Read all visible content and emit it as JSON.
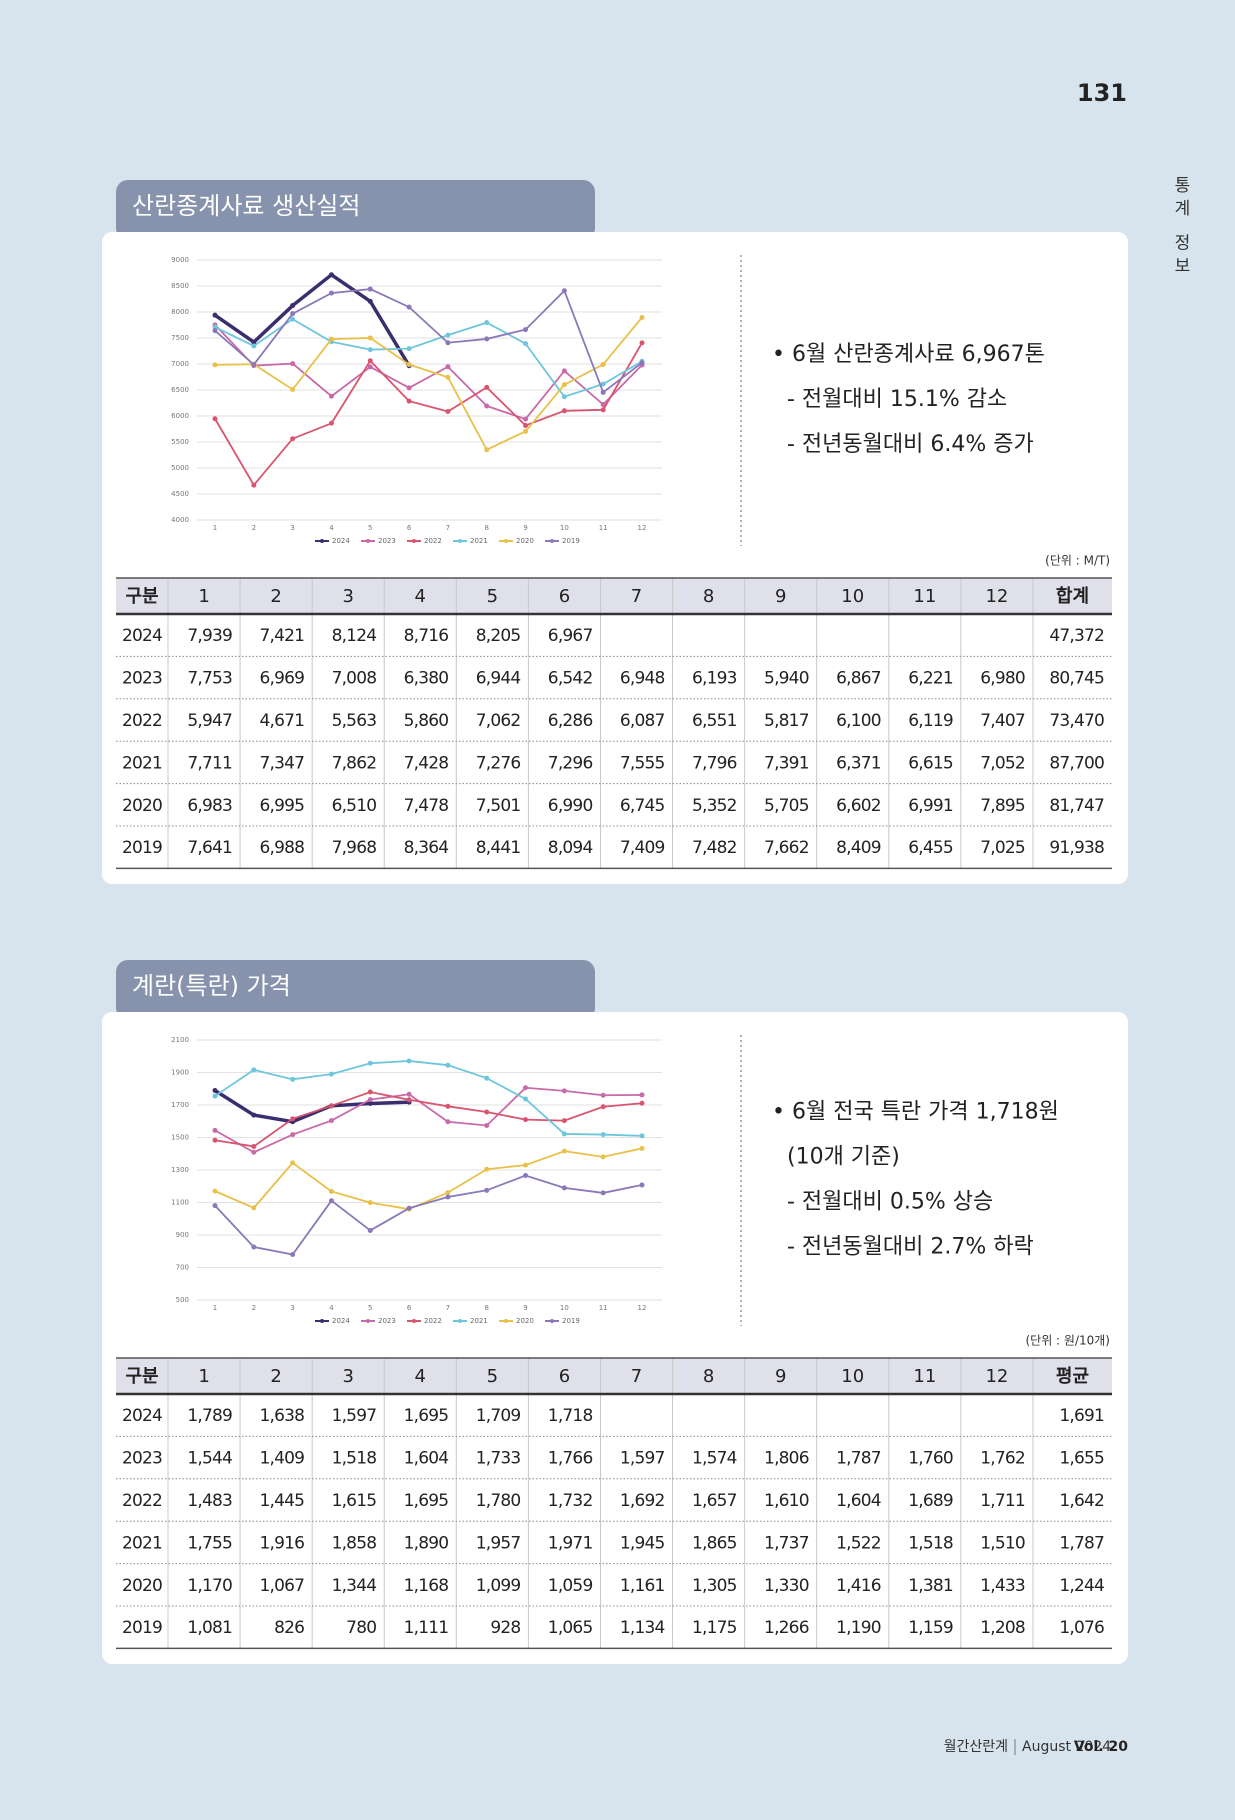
{
  "page_number": "131",
  "side_label": "통계 정보",
  "footer": {
    "magazine": "월간산란계",
    "issue": "August 2024",
    "vol": "Vol. 20"
  },
  "sections": [
    {
      "title": "산란종계사료 생산실적",
      "chart": {
        "type": "line",
        "categories": [
          "1",
          "2",
          "3",
          "4",
          "5",
          "6",
          "7",
          "8",
          "9",
          "10",
          "11",
          "12"
        ],
        "ylim": [
          4000,
          9000
        ],
        "yticks": [
          4000,
          4500,
          5000,
          5500,
          6000,
          6500,
          7000,
          7500,
          8000,
          8500,
          9000
        ],
        "grid": true,
        "series": [
          {
            "name": "2024",
            "color": "#3b2d6e",
            "values": [
              7939,
              7421,
              8124,
              8716,
              8205,
              6967,
              null,
              null,
              null,
              null,
              null,
              null
            ]
          },
          {
            "name": "2023",
            "color": "#c86aa8",
            "values": [
              7753,
              6969,
              7008,
              6380,
              6944,
              6542,
              6948,
              6193,
              5940,
              6867,
              6221,
              6980
            ]
          },
          {
            "name": "2022",
            "color": "#d9546e",
            "values": [
              5947,
              4671,
              5563,
              5860,
              7062,
              6286,
              6087,
              6551,
              5817,
              6100,
              6119,
              7407
            ]
          },
          {
            "name": "2021",
            "color": "#6ec6dc",
            "values": [
              7711,
              7347,
              7862,
              7428,
              7276,
              7296,
              7555,
              7796,
              7391,
              6371,
              6615,
              7052
            ]
          },
          {
            "name": "2020",
            "color": "#e8c04a",
            "values": [
              6983,
              6995,
              6510,
              7478,
              7501,
              6990,
              6745,
              5352,
              5705,
              6602,
              6991,
              7895
            ]
          },
          {
            "name": "2019",
            "color": "#8a78b8",
            "values": [
              7641,
              6988,
              7968,
              8364,
              8441,
              8094,
              7409,
              7482,
              7662,
              8409,
              6455,
              7025
            ]
          }
        ]
      },
      "notes": [
        "• 6월 산란종계사료 6,967톤",
        "- 전월대비 15.1% 감소",
        "- 전년동월대비 6.4% 증가"
      ],
      "unit": "(단위 : M/T)",
      "table": {
        "header": [
          "구분",
          "1",
          "2",
          "3",
          "4",
          "5",
          "6",
          "7",
          "8",
          "9",
          "10",
          "11",
          "12",
          "합계"
        ],
        "rows": [
          [
            "2024",
            "7,939",
            "7,421",
            "8,124",
            "8,716",
            "8,205",
            "6,967",
            null,
            null,
            null,
            null,
            null,
            null,
            "47,372"
          ],
          [
            "2023",
            "7,753",
            "6,969",
            "7,008",
            "6,380",
            "6,944",
            "6,542",
            "6,948",
            "6,193",
            "5,940",
            "6,867",
            "6,221",
            "6,980",
            "80,745"
          ],
          [
            "2022",
            "5,947",
            "4,671",
            "5,563",
            "5,860",
            "7,062",
            "6,286",
            "6,087",
            "6,551",
            "5,817",
            "6,100",
            "6,119",
            "7,407",
            "73,470"
          ],
          [
            "2021",
            "7,711",
            "7,347",
            "7,862",
            "7,428",
            "7,276",
            "7,296",
            "7,555",
            "7,796",
            "7,391",
            "6,371",
            "6,615",
            "7,052",
            "87,700"
          ],
          [
            "2020",
            "6,983",
            "6,995",
            "6,510",
            "7,478",
            "7,501",
            "6,990",
            "6,745",
            "5,352",
            "5,705",
            "6,602",
            "6,991",
            "7,895",
            "81,747"
          ],
          [
            "2019",
            "7,641",
            "6,988",
            "7,968",
            "8,364",
            "8,441",
            "8,094",
            "7,409",
            "7,482",
            "7,662",
            "8,409",
            "6,455",
            "7,025",
            "91,938"
          ]
        ]
      }
    },
    {
      "title": "계란(특란) 가격",
      "chart": {
        "type": "line",
        "categories": [
          "1",
          "2",
          "3",
          "4",
          "5",
          "6",
          "7",
          "8",
          "9",
          "10",
          "11",
          "12"
        ],
        "ylim": [
          500,
          2100
        ],
        "yticks": [
          500,
          700,
          900,
          1100,
          1300,
          1500,
          1700,
          1900,
          2100
        ],
        "grid": true,
        "series": [
          {
            "name": "2024",
            "color": "#3b2d6e",
            "values": [
              1789,
              1638,
              1597,
              1695,
              1709,
              1718,
              null,
              null,
              null,
              null,
              null,
              null
            ]
          },
          {
            "name": "2023",
            "color": "#c86aa8",
            "values": [
              1544,
              1409,
              1518,
              1604,
              1733,
              1766,
              1597,
              1574,
              1806,
              1787,
              1760,
              1762
            ]
          },
          {
            "name": "2022",
            "color": "#d9546e",
            "values": [
              1483,
              1445,
              1615,
              1695,
              1780,
              1732,
              1692,
              1657,
              1610,
              1604,
              1689,
              1711
            ]
          },
          {
            "name": "2021",
            "color": "#6ec6dc",
            "values": [
              1755,
              1916,
              1858,
              1890,
              1957,
              1971,
              1945,
              1865,
              1737,
              1522,
              1518,
              1510
            ]
          },
          {
            "name": "2020",
            "color": "#e8c04a",
            "values": [
              1170,
              1067,
              1344,
              1168,
              1099,
              1059,
              1161,
              1305,
              1330,
              1416,
              1381,
              1433
            ]
          },
          {
            "name": "2019",
            "color": "#8a78b8",
            "values": [
              1081,
              826,
              780,
              1111,
              928,
              1065,
              1134,
              1175,
              1266,
              1190,
              1159,
              1208
            ]
          }
        ]
      },
      "notes": [
        "• 6월 전국 특란 가격 1,718원",
        "(10개 기준)",
        "- 전월대비 0.5% 상승",
        "- 전년동월대비 2.7% 하락"
      ],
      "unit": "(단위 : 원/10개)",
      "table": {
        "header": [
          "구분",
          "1",
          "2",
          "3",
          "4",
          "5",
          "6",
          "7",
          "8",
          "9",
          "10",
          "11",
          "12",
          "평균"
        ],
        "rows": [
          [
            "2024",
            "1,789",
            "1,638",
            "1,597",
            "1,695",
            "1,709",
            "1,718",
            null,
            null,
            null,
            null,
            null,
            null,
            "1,691"
          ],
          [
            "2023",
            "1,544",
            "1,409",
            "1,518",
            "1,604",
            "1,733",
            "1,766",
            "1,597",
            "1,574",
            "1,806",
            "1,787",
            "1,760",
            "1,762",
            "1,655"
          ],
          [
            "2022",
            "1,483",
            "1,445",
            "1,615",
            "1,695",
            "1,780",
            "1,732",
            "1,692",
            "1,657",
            "1,610",
            "1,604",
            "1,689",
            "1,711",
            "1,642"
          ],
          [
            "2021",
            "1,755",
            "1,916",
            "1,858",
            "1,890",
            "1,957",
            "1,971",
            "1,945",
            "1,865",
            "1,737",
            "1,522",
            "1,518",
            "1,510",
            "1,787"
          ],
          [
            "2020",
            "1,170",
            "1,067",
            "1,344",
            "1,168",
            "1,099",
            "1,059",
            "1,161",
            "1,305",
            "1,330",
            "1,416",
            "1,381",
            "1,433",
            "1,244"
          ],
          [
            "2019",
            "1,081",
            "826",
            "780",
            "1,111",
            "928",
            "1,065",
            "1,134",
            "1,175",
            "1,266",
            "1,190",
            "1,159",
            "1,208",
            "1,076"
          ]
        ]
      }
    }
  ]
}
